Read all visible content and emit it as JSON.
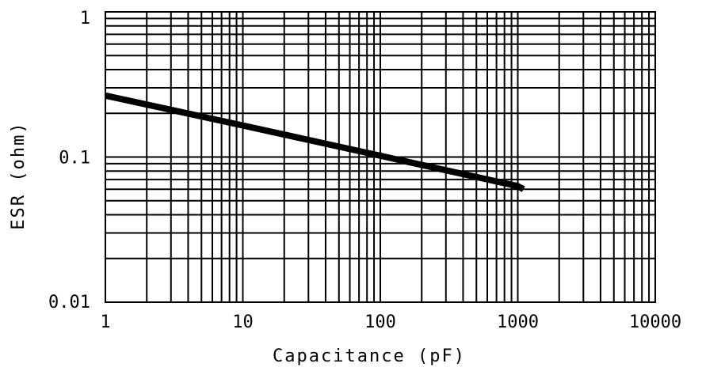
{
  "chart_data": {
    "type": "line",
    "title": "",
    "xlabel": "Capacitance (pF)",
    "ylabel": "ESR (ohm)",
    "x_scale": "log",
    "y_scale": "log",
    "xlim": [
      1,
      10000
    ],
    "ylim": [
      0.01,
      1
    ],
    "x_ticks": [
      1,
      10,
      100,
      1000,
      10000
    ],
    "x_tick_labels": [
      "1",
      "10",
      "100",
      "1000",
      "10000"
    ],
    "y_ticks": [
      0.01,
      0.1,
      1
    ],
    "y_tick_labels": [
      "0.01",
      "0.1",
      "1"
    ],
    "grid": true,
    "line_color": "#000000",
    "series": [
      {
        "x": [
          1,
          10,
          100,
          1000,
          1100
        ],
        "y": [
          0.265,
          0.165,
          0.102,
          0.063,
          0.06
        ]
      }
    ]
  }
}
